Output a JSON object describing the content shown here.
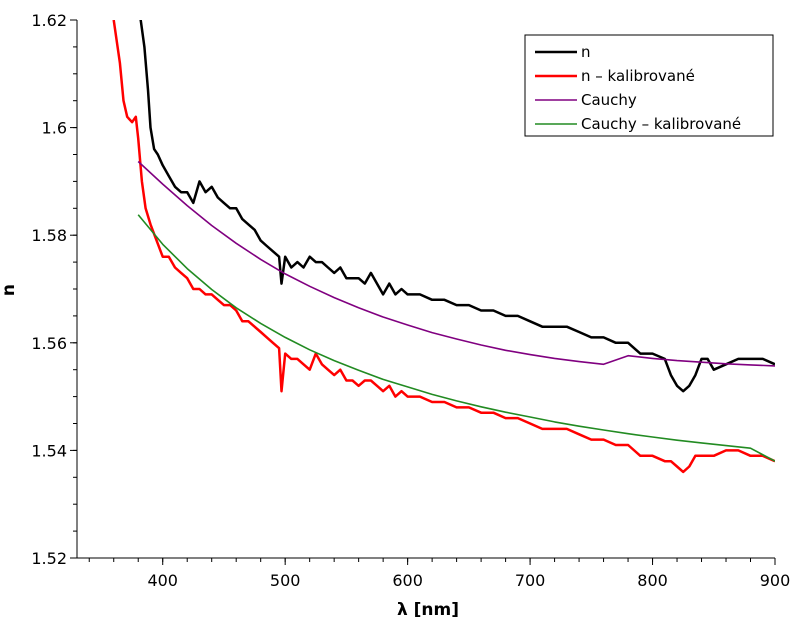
{
  "chart_data": {
    "type": "line",
    "title": "",
    "xlabel": "λ [nm]",
    "ylabel": "n",
    "xlim": [
      330,
      900
    ],
    "ylim": [
      1.52,
      1.62
    ],
    "x_ticks": [
      400,
      500,
      600,
      700,
      800,
      900
    ],
    "x_tick_labels": [
      "400",
      "500",
      "600",
      "700",
      "800",
      "900"
    ],
    "y_ticks": [
      1.52,
      1.54,
      1.56,
      1.58,
      1.6,
      1.62
    ],
    "y_tick_labels": [
      "1.52",
      "1.54",
      "1.56",
      "1.58",
      "1.6",
      "1.62"
    ],
    "grid": false,
    "legend_position": "top-right",
    "series": [
      {
        "name": "n",
        "color": "#000000",
        "points": [
          [
            380,
            1.621
          ],
          [
            382,
            1.62
          ],
          [
            385,
            1.615
          ],
          [
            388,
            1.607
          ],
          [
            390,
            1.6
          ],
          [
            393,
            1.596
          ],
          [
            396,
            1.595
          ],
          [
            400,
            1.593
          ],
          [
            405,
            1.591
          ],
          [
            410,
            1.589
          ],
          [
            415,
            1.588
          ],
          [
            420,
            1.588
          ],
          [
            425,
            1.586
          ],
          [
            430,
            1.59
          ],
          [
            435,
            1.588
          ],
          [
            440,
            1.589
          ],
          [
            445,
            1.587
          ],
          [
            450,
            1.586
          ],
          [
            455,
            1.585
          ],
          [
            460,
            1.585
          ],
          [
            465,
            1.583
          ],
          [
            470,
            1.582
          ],
          [
            475,
            1.581
          ],
          [
            480,
            1.579
          ],
          [
            485,
            1.578
          ],
          [
            490,
            1.577
          ],
          [
            495,
            1.576
          ],
          [
            497,
            1.571
          ],
          [
            500,
            1.576
          ],
          [
            505,
            1.574
          ],
          [
            510,
            1.575
          ],
          [
            515,
            1.574
          ],
          [
            520,
            1.576
          ],
          [
            525,
            1.575
          ],
          [
            530,
            1.575
          ],
          [
            535,
            1.574
          ],
          [
            540,
            1.573
          ],
          [
            545,
            1.574
          ],
          [
            550,
            1.572
          ],
          [
            555,
            1.572
          ],
          [
            560,
            1.572
          ],
          [
            565,
            1.571
          ],
          [
            570,
            1.573
          ],
          [
            575,
            1.571
          ],
          [
            580,
            1.569
          ],
          [
            585,
            1.571
          ],
          [
            590,
            1.569
          ],
          [
            595,
            1.57
          ],
          [
            600,
            1.569
          ],
          [
            610,
            1.569
          ],
          [
            620,
            1.568
          ],
          [
            630,
            1.568
          ],
          [
            640,
            1.567
          ],
          [
            650,
            1.567
          ],
          [
            660,
            1.566
          ],
          [
            670,
            1.566
          ],
          [
            680,
            1.565
          ],
          [
            690,
            1.565
          ],
          [
            700,
            1.564
          ],
          [
            710,
            1.563
          ],
          [
            720,
            1.563
          ],
          [
            730,
            1.563
          ],
          [
            740,
            1.562
          ],
          [
            750,
            1.561
          ],
          [
            760,
            1.561
          ],
          [
            770,
            1.56
          ],
          [
            780,
            1.56
          ],
          [
            790,
            1.558
          ],
          [
            800,
            1.558
          ],
          [
            810,
            1.557
          ],
          [
            815,
            1.554
          ],
          [
            820,
            1.552
          ],
          [
            825,
            1.551
          ],
          [
            830,
            1.552
          ],
          [
            835,
            1.554
          ],
          [
            840,
            1.557
          ],
          [
            845,
            1.557
          ],
          [
            850,
            1.555
          ],
          [
            860,
            1.556
          ],
          [
            870,
            1.557
          ],
          [
            880,
            1.557
          ],
          [
            890,
            1.557
          ],
          [
            900,
            1.556
          ]
        ]
      },
      {
        "name": "n – kalibrované",
        "color": "#ff0000",
        "points": [
          [
            360,
            1.62
          ],
          [
            365,
            1.612
          ],
          [
            368,
            1.605
          ],
          [
            371,
            1.602
          ],
          [
            375,
            1.601
          ],
          [
            378,
            1.602
          ],
          [
            380,
            1.598
          ],
          [
            383,
            1.59
          ],
          [
            386,
            1.585
          ],
          [
            390,
            1.582
          ],
          [
            395,
            1.579
          ],
          [
            400,
            1.576
          ],
          [
            405,
            1.576
          ],
          [
            410,
            1.574
          ],
          [
            415,
            1.573
          ],
          [
            420,
            1.572
          ],
          [
            425,
            1.57
          ],
          [
            430,
            1.57
          ],
          [
            435,
            1.569
          ],
          [
            440,
            1.569
          ],
          [
            445,
            1.568
          ],
          [
            450,
            1.567
          ],
          [
            455,
            1.567
          ],
          [
            460,
            1.566
          ],
          [
            465,
            1.564
          ],
          [
            470,
            1.564
          ],
          [
            475,
            1.563
          ],
          [
            480,
            1.562
          ],
          [
            485,
            1.561
          ],
          [
            490,
            1.56
          ],
          [
            495,
            1.559
          ],
          [
            497,
            1.551
          ],
          [
            500,
            1.558
          ],
          [
            505,
            1.557
          ],
          [
            510,
            1.557
          ],
          [
            515,
            1.556
          ],
          [
            520,
            1.555
          ],
          [
            525,
            1.558
          ],
          [
            530,
            1.556
          ],
          [
            535,
            1.555
          ],
          [
            540,
            1.554
          ],
          [
            545,
            1.555
          ],
          [
            550,
            1.553
          ],
          [
            555,
            1.553
          ],
          [
            560,
            1.552
          ],
          [
            565,
            1.553
          ],
          [
            570,
            1.553
          ],
          [
            575,
            1.552
          ],
          [
            580,
            1.551
          ],
          [
            585,
            1.552
          ],
          [
            590,
            1.55
          ],
          [
            595,
            1.551
          ],
          [
            600,
            1.55
          ],
          [
            610,
            1.55
          ],
          [
            620,
            1.549
          ],
          [
            630,
            1.549
          ],
          [
            640,
            1.548
          ],
          [
            650,
            1.548
          ],
          [
            660,
            1.547
          ],
          [
            670,
            1.547
          ],
          [
            680,
            1.546
          ],
          [
            690,
            1.546
          ],
          [
            700,
            1.545
          ],
          [
            710,
            1.544
          ],
          [
            720,
            1.544
          ],
          [
            730,
            1.544
          ],
          [
            740,
            1.543
          ],
          [
            750,
            1.542
          ],
          [
            760,
            1.542
          ],
          [
            770,
            1.541
          ],
          [
            780,
            1.541
          ],
          [
            790,
            1.539
          ],
          [
            800,
            1.539
          ],
          [
            810,
            1.538
          ],
          [
            815,
            1.538
          ],
          [
            820,
            1.537
          ],
          [
            825,
            1.536
          ],
          [
            830,
            1.537
          ],
          [
            835,
            1.539
          ],
          [
            840,
            1.539
          ],
          [
            850,
            1.539
          ],
          [
            860,
            1.54
          ],
          [
            870,
            1.54
          ],
          [
            880,
            1.539
          ],
          [
            890,
            1.539
          ],
          [
            900,
            1.538
          ]
        ]
      },
      {
        "name": "Cauchy",
        "color": "#800080",
        "points": [
          [
            380,
            1.5937
          ],
          [
            400,
            1.5895
          ],
          [
            420,
            1.5855
          ],
          [
            440,
            1.5818
          ],
          [
            460,
            1.5785
          ],
          [
            480,
            1.5755
          ],
          [
            500,
            1.5728
          ],
          [
            520,
            1.5705
          ],
          [
            540,
            1.5684
          ],
          [
            560,
            1.5665
          ],
          [
            580,
            1.5648
          ],
          [
            600,
            1.5633
          ],
          [
            620,
            1.5619
          ],
          [
            640,
            1.5607
          ],
          [
            660,
            1.5596
          ],
          [
            680,
            1.5586
          ],
          [
            700,
            1.5578
          ],
          [
            720,
            1.5571
          ],
          [
            740,
            1.5565
          ],
          [
            760,
            1.556
          ],
          [
            780,
            1.5576
          ],
          [
            800,
            1.5571
          ],
          [
            820,
            1.5567
          ],
          [
            840,
            1.5564
          ],
          [
            860,
            1.5561
          ],
          [
            880,
            1.5559
          ],
          [
            900,
            1.5557
          ]
        ]
      },
      {
        "name": "Cauchy – kalibrované",
        "color": "#228b22",
        "points": [
          [
            380,
            1.5838
          ],
          [
            400,
            1.5783
          ],
          [
            420,
            1.5738
          ],
          [
            440,
            1.5699
          ],
          [
            460,
            1.5665
          ],
          [
            480,
            1.5636
          ],
          [
            500,
            1.561
          ],
          [
            520,
            1.5587
          ],
          [
            540,
            1.5567
          ],
          [
            560,
            1.5549
          ],
          [
            580,
            1.5532
          ],
          [
            600,
            1.5518
          ],
          [
            620,
            1.5504
          ],
          [
            640,
            1.5492
          ],
          [
            660,
            1.5481
          ],
          [
            680,
            1.5471
          ],
          [
            700,
            1.5462
          ],
          [
            720,
            1.5453
          ],
          [
            740,
            1.5445
          ],
          [
            760,
            1.5438
          ],
          [
            780,
            1.5431
          ],
          [
            800,
            1.5425
          ],
          [
            820,
            1.5419
          ],
          [
            840,
            1.5414
          ],
          [
            860,
            1.5409
          ],
          [
            880,
            1.5404
          ],
          [
            900,
            1.538
          ]
        ]
      }
    ]
  }
}
